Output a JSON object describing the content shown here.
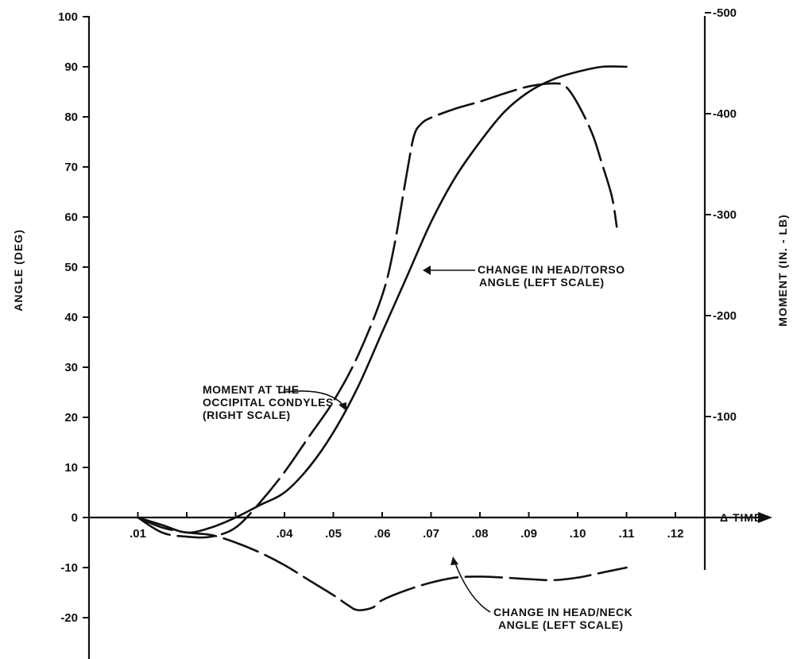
{
  "chart_data": {
    "type": "line",
    "xlabel": "Δ TIME",
    "ylabel_left": "ANGLE (DEG)",
    "ylabel_right": "MOMENT (IN. - LB)",
    "xlim": [
      0.0,
      0.125
    ],
    "ylim_left": [
      -27,
      100
    ],
    "ylim_right": [
      0,
      -500
    ],
    "x_ticks": [
      0.01,
      0.02,
      0.03,
      0.04,
      0.05,
      0.06,
      0.07,
      0.08,
      0.09,
      0.1,
      0.11,
      0.12
    ],
    "x_tick_labels": [
      ".01",
      "",
      "",
      ".04",
      ".05",
      ".06",
      ".07",
      ".08",
      ".09",
      ".10",
      ".11",
      ".12"
    ],
    "y_left_ticks": [
      -20,
      -10,
      0,
      10,
      20,
      30,
      40,
      50,
      60,
      70,
      80,
      90,
      100
    ],
    "y_left_tick_labels": [
      "-20",
      "-10",
      "0",
      "10",
      "20",
      "30",
      "40",
      "50",
      "60",
      "70",
      "80",
      "90",
      "100"
    ],
    "y_right_ticks": [
      -100,
      -200,
      -300,
      -400,
      -500
    ],
    "y_right_tick_labels": [
      "-100",
      "-200",
      "-300",
      "-400",
      "-500"
    ],
    "grid": false,
    "series": [
      {
        "name": "CHANGE IN HEAD/TORSO ANGLE (LEFT SCALE)",
        "scale": "left",
        "style": "solid",
        "x": [
          0.01,
          0.015,
          0.02,
          0.025,
          0.03,
          0.035,
          0.04,
          0.045,
          0.05,
          0.055,
          0.06,
          0.065,
          0.07,
          0.075,
          0.08,
          0.085,
          0.09,
          0.095,
          0.1,
          0.105,
          0.11
        ],
        "y": [
          0,
          -1.5,
          -3,
          -2,
          0,
          2.5,
          5,
          10,
          17,
          26,
          37,
          48,
          59,
          68,
          75,
          81,
          85,
          87.5,
          89,
          90,
          90
        ]
      },
      {
        "name": "MOMENT AT THE OCCIPITAL CONDYLES (RIGHT SCALE)",
        "scale": "right",
        "style": "long-dash",
        "x": [
          0.01,
          0.015,
          0.02,
          0.025,
          0.03,
          0.035,
          0.04,
          0.045,
          0.05,
          0.055,
          0.06,
          0.0625,
          0.065,
          0.0665,
          0.068,
          0.07,
          0.075,
          0.08,
          0.085,
          0.09,
          0.095,
          0.0975,
          0.1,
          0.103,
          0.105,
          0.107,
          0.108
        ],
        "y": [
          0,
          15,
          19,
          19,
          10,
          -15,
          -45,
          -80,
          -115,
          -160,
          -220,
          -270,
          -340,
          -378,
          -390,
          -396,
          -405,
          -412,
          -420,
          -427,
          -430,
          -427,
          -410,
          -380,
          -350,
          -318,
          -288
        ]
      },
      {
        "name": "CHANGE IN HEAD/NECK ANGLE (LEFT SCALE)",
        "scale": "left",
        "style": "long-dash",
        "x": [
          0.01,
          0.015,
          0.02,
          0.025,
          0.03,
          0.035,
          0.04,
          0.045,
          0.05,
          0.053,
          0.055,
          0.058,
          0.06,
          0.065,
          0.07,
          0.075,
          0.08,
          0.085,
          0.09,
          0.095,
          0.1,
          0.105,
          0.11
        ],
        "y": [
          0,
          -2,
          -3,
          -3.5,
          -5,
          -7,
          -9.5,
          -12.5,
          -15.5,
          -17.5,
          -18.5,
          -18,
          -16.5,
          -14.5,
          -13,
          -12,
          -11.8,
          -12,
          -12.3,
          -12.5,
          -12,
          -11,
          -10
        ]
      }
    ],
    "annotations": [
      {
        "lines": [
          "MOMENT AT THE",
          "OCCIPITAL CONDYLES",
          "(RIGHT SCALE)"
        ]
      },
      {
        "lines": [
          "CHANGE IN HEAD/TORSO",
          "ANGLE (LEFT SCALE)"
        ]
      },
      {
        "lines": [
          "CHANGE IN HEAD/NECK",
          "ANGLE (LEFT SCALE)"
        ]
      }
    ]
  }
}
